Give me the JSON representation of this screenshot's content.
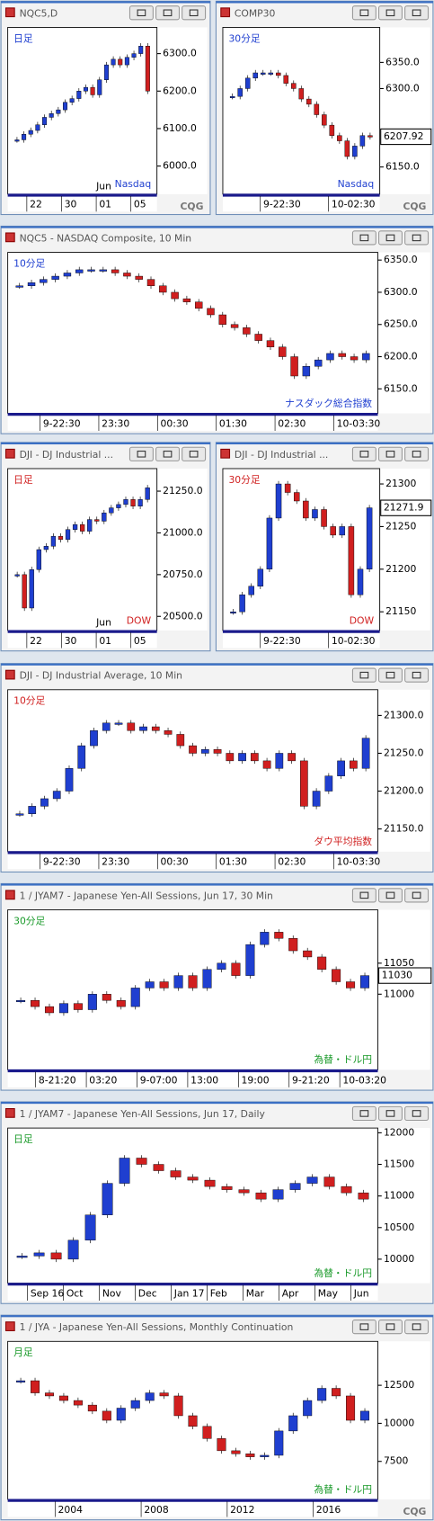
{
  "windows": [
    {
      "title": "NQC5,D",
      "period_label": "日足",
      "period_color": "#1f3fd0",
      "annotation": "Nasdaq",
      "annotation_color": "#1f3fd0",
      "ylim": [
        5925,
        6370
      ],
      "yticks": [
        {
          "value": 6300,
          "label": "6300.0"
        },
        {
          "value": 6200,
          "label": "6200.0"
        },
        {
          "value": 6100,
          "label": "6100.0"
        },
        {
          "value": 6000,
          "label": "6000.0"
        }
      ],
      "xlabels": [
        "22",
        "30",
        "01",
        "05"
      ],
      "x_note": "Jun",
      "logo": "CQG",
      "closes": [
        6070,
        6085,
        6095,
        6110,
        6130,
        6140,
        6150,
        6170,
        6180,
        6200,
        6210,
        6190,
        6230,
        6270,
        6285,
        6270,
        6290,
        6300,
        6320,
        6200
      ]
    },
    {
      "title": "COMP30",
      "period_label": "30分足",
      "period_color": "#1f3fd0",
      "annotation": "Nasdaq",
      "annotation_color": "#1f3fd0",
      "ylim": [
        6098,
        6417
      ],
      "yticks": [
        {
          "value": 6350,
          "label": "6350.0"
        },
        {
          "value": 6300,
          "label": "6300.0"
        },
        {
          "value": 6150,
          "label": "6150.0"
        }
      ],
      "last_price": {
        "value": 6207.92,
        "label": "6207.92"
      },
      "xlabels": [
        "9-22:30",
        "10-02:30"
      ],
      "logo": "CQG",
      "closes": [
        6285,
        6300,
        6320,
        6330,
        6330,
        6330,
        6325,
        6310,
        6300,
        6280,
        6270,
        6250,
        6230,
        6210,
        6200,
        6170,
        6190,
        6210,
        6208
      ]
    },
    {
      "title": "NQC5 - NASDAQ Composite, 10 Min",
      "period_label": "10分足",
      "period_color": "#1f3fd0",
      "annotation": "ナスダック総合指数",
      "annotation_color": "#1f3fd0",
      "ylim": [
        6112,
        6362
      ],
      "yticks": [
        {
          "value": 6350,
          "label": "6350.0"
        },
        {
          "value": 6300,
          "label": "6300.0"
        },
        {
          "value": 6250,
          "label": "6250.0"
        },
        {
          "value": 6200,
          "label": "6200.0"
        },
        {
          "value": 6150,
          "label": "6150.0"
        }
      ],
      "xlabels": [
        "9-22:30",
        "23:30",
        "00:30",
        "01:30",
        "02:30",
        "10-03:30"
      ],
      "closes": [
        6310,
        6315,
        6320,
        6325,
        6330,
        6335,
        6335,
        6335,
        6330,
        6325,
        6320,
        6310,
        6300,
        6290,
        6285,
        6275,
        6265,
        6250,
        6245,
        6235,
        6225,
        6215,
        6200,
        6170,
        6185,
        6195,
        6205,
        6200,
        6195,
        6205
      ]
    },
    {
      "title": "DJI - DJ Industrial ...",
      "period_label": "日足",
      "period_color": "#d01f1f",
      "annotation": "DOW",
      "annotation_color": "#d01f1f",
      "ylim": [
        20415,
        21385
      ],
      "yticks": [
        {
          "value": 21250,
          "label": "21250.0"
        },
        {
          "value": 21000,
          "label": "21000.0"
        },
        {
          "value": 20750,
          "label": "20750.0"
        },
        {
          "value": 20500,
          "label": "20500.0"
        }
      ],
      "xlabels": [
        "22",
        "30",
        "01",
        "05"
      ],
      "x_note": "Jun",
      "closes": [
        20750,
        20550,
        20780,
        20900,
        20920,
        20980,
        20960,
        21020,
        21050,
        21010,
        21080,
        21070,
        21120,
        21150,
        21170,
        21200,
        21160,
        21200,
        21270
      ]
    },
    {
      "title": "DJI - DJ Industrial ...",
      "period_label": "30分足",
      "period_color": "#d01f1f",
      "annotation": "DOW",
      "annotation_color": "#d01f1f",
      "ylim": [
        21128,
        21318
      ],
      "yticks": [
        21300,
        21250,
        21200,
        21150
      ],
      "last_price": {
        "value": 21271.9,
        "label": "21271.9"
      },
      "xlabels": [
        "9-22:30",
        "10-02:30"
      ],
      "closes": [
        21150,
        21170,
        21180,
        21200,
        21260,
        21300,
        21290,
        21280,
        21260,
        21270,
        21250,
        21240,
        21250,
        21170,
        21200,
        21272
      ]
    },
    {
      "title": "DJI - DJ Industrial Average, 10 Min",
      "period_label": "10分足",
      "period_color": "#d01f1f",
      "annotation": "ダウ平均指数",
      "annotation_color": "#d01f1f",
      "ylim": [
        21120,
        21334
      ],
      "yticks": [
        {
          "value": 21300,
          "label": "21300.0"
        },
        {
          "value": 21250,
          "label": "21250.0"
        },
        {
          "value": 21200,
          "label": "21200.0"
        },
        {
          "value": 21150,
          "label": "21150.0"
        }
      ],
      "xlabels": [
        "9-22:30",
        "23:30",
        "00:30",
        "01:30",
        "02:30",
        "10-03:30"
      ],
      "closes": [
        21170,
        21180,
        21190,
        21200,
        21230,
        21260,
        21280,
        21290,
        21290,
        21280,
        21285,
        21280,
        21275,
        21260,
        21250,
        21255,
        21250,
        21240,
        21250,
        21240,
        21230,
        21250,
        21240,
        21180,
        21200,
        21220,
        21240,
        21230,
        21270
      ]
    },
    {
      "title": "1 / JYAM7 - Japanese Yen-All Sessions, Jun 17, 30 Min",
      "period_label": "30分足",
      "period_color": "#1a9a2a",
      "annotation": "為替・ドル円",
      "annotation_color": "#1a9a2a",
      "ylim": [
        10878,
        11136
      ],
      "yticks": [
        11050,
        11000
      ],
      "last_price": {
        "value": 11030,
        "label": "11030"
      },
      "xlabels": [
        "8-21:20",
        "03:20",
        "9-07:00",
        "13:00",
        "19:00",
        "9-21:20",
        "10-03:20"
      ],
      "closes": [
        10990,
        10980,
        10970,
        10985,
        10975,
        11000,
        10990,
        10980,
        11010,
        11020,
        11010,
        11030,
        11010,
        11040,
        11050,
        11030,
        11080,
        11100,
        11090,
        11070,
        11060,
        11040,
        11020,
        11010,
        11030
      ]
    },
    {
      "title": "1 / JYAM7 - Japanese Yen-All Sessions, Jun 17, Daily",
      "period_label": "日足",
      "period_color": "#1a9a2a",
      "annotation": "為替・ドル円",
      "annotation_color": "#1a9a2a",
      "ylim": [
        9620,
        12075
      ],
      "yticks": [
        12000,
        11500,
        11000,
        10500,
        10000
      ],
      "xlabels": [
        "Sep 16",
        "Oct",
        "Nov",
        "Dec",
        "Jan 17",
        "Feb",
        "Mar",
        "Apr",
        "May",
        "Jun"
      ],
      "closes": [
        10050,
        10100,
        10000,
        10300,
        10700,
        11200,
        11600,
        11500,
        11400,
        11300,
        11250,
        11150,
        11100,
        11050,
        10950,
        11100,
        11200,
        11300,
        11150,
        11050,
        10950
      ]
    },
    {
      "title": "1 / JYA - Japanese Yen-All Sessions, Monthly Continuation",
      "period_label": "月足",
      "period_color": "#1a9a2a",
      "annotation": "為替・ドル円",
      "annotation_color": "#1a9a2a",
      "ylim": [
        5000,
        15385
      ],
      "yticks": [
        12500,
        10000,
        7500
      ],
      "xlabels": [
        "2004",
        "2008",
        "2012",
        "2016"
      ],
      "logo": "CQG",
      "closes": [
        12800,
        12000,
        11800,
        11500,
        11200,
        10800,
        10200,
        11000,
        11500,
        12000,
        11800,
        10500,
        9800,
        9000,
        8200,
        8000,
        7800,
        7900,
        9500,
        10500,
        11500,
        12300,
        11800,
        10200,
        10800
      ]
    }
  ]
}
